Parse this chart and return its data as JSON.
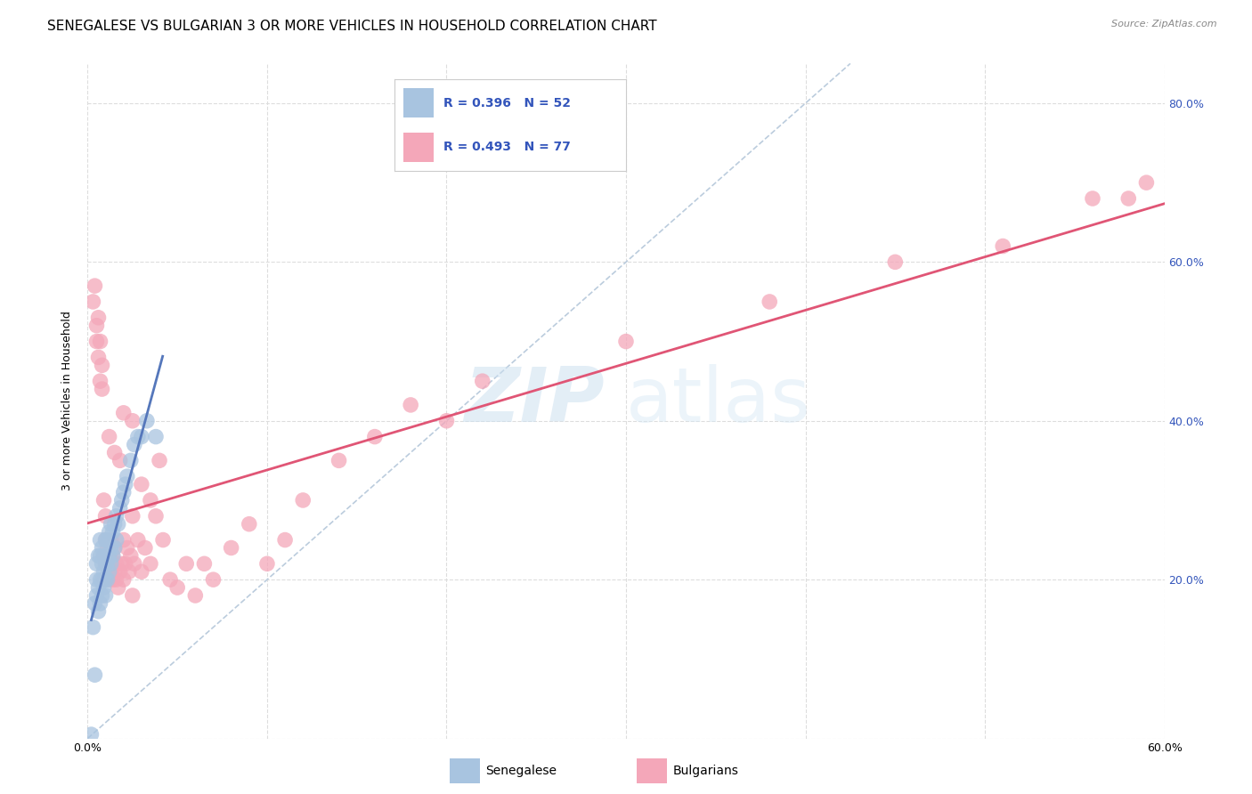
{
  "title": "SENEGALESE VS BULGARIAN 3 OR MORE VEHICLES IN HOUSEHOLD CORRELATION CHART",
  "source": "Source: ZipAtlas.com",
  "ylabel": "3 or more Vehicles in Household",
  "xlim": [
    0.0,
    0.6
  ],
  "ylim": [
    0.0,
    0.85
  ],
  "xticks": [
    0.0,
    0.1,
    0.2,
    0.3,
    0.4,
    0.5,
    0.6
  ],
  "xticklabels": [
    "0.0%",
    "",
    "",
    "",
    "",
    "",
    "60.0%"
  ],
  "yticks": [
    0.0,
    0.2,
    0.4,
    0.6,
    0.8
  ],
  "yticklabels": [
    "",
    "20.0%",
    "40.0%",
    "60.0%",
    "80.0%"
  ],
  "senegalese_color": "#a8c4e0",
  "bulgarian_color": "#f4a7b9",
  "senegalese_line_color": "#5577bb",
  "bulgarian_line_color": "#e05575",
  "diagonal_color": "#bbccdd",
  "background_color": "#ffffff",
  "grid_color": "#dddddd",
  "title_fontsize": 11,
  "axis_label_fontsize": 9,
  "tick_fontsize": 9,
  "watermark_zip": "ZIP",
  "watermark_atlas": "atlas",
  "senegalese_x": [
    0.002,
    0.003,
    0.004,
    0.004,
    0.005,
    0.005,
    0.005,
    0.006,
    0.006,
    0.006,
    0.007,
    0.007,
    0.007,
    0.007,
    0.008,
    0.008,
    0.008,
    0.008,
    0.009,
    0.009,
    0.009,
    0.01,
    0.01,
    0.01,
    0.01,
    0.011,
    0.011,
    0.011,
    0.012,
    0.012,
    0.012,
    0.013,
    0.013,
    0.013,
    0.014,
    0.014,
    0.015,
    0.015,
    0.016,
    0.016,
    0.017,
    0.018,
    0.019,
    0.02,
    0.021,
    0.022,
    0.024,
    0.026,
    0.028,
    0.03,
    0.033,
    0.038
  ],
  "senegalese_y": [
    0.005,
    0.14,
    0.08,
    0.17,
    0.18,
    0.2,
    0.22,
    0.16,
    0.19,
    0.23,
    0.17,
    0.2,
    0.23,
    0.25,
    0.18,
    0.2,
    0.22,
    0.24,
    0.19,
    0.21,
    0.23,
    0.18,
    0.2,
    0.22,
    0.25,
    0.2,
    0.22,
    0.25,
    0.21,
    0.23,
    0.26,
    0.22,
    0.24,
    0.27,
    0.23,
    0.26,
    0.24,
    0.27,
    0.25,
    0.28,
    0.27,
    0.29,
    0.3,
    0.31,
    0.32,
    0.33,
    0.35,
    0.37,
    0.38,
    0.38,
    0.4,
    0.38
  ],
  "bulgarian_x": [
    0.003,
    0.004,
    0.005,
    0.005,
    0.006,
    0.006,
    0.007,
    0.007,
    0.008,
    0.008,
    0.009,
    0.009,
    0.009,
    0.01,
    0.01,
    0.01,
    0.011,
    0.011,
    0.012,
    0.012,
    0.013,
    0.013,
    0.014,
    0.014,
    0.015,
    0.015,
    0.016,
    0.016,
    0.017,
    0.018,
    0.019,
    0.02,
    0.021,
    0.022,
    0.023,
    0.024,
    0.025,
    0.026,
    0.028,
    0.03,
    0.032,
    0.035,
    0.038,
    0.042,
    0.046,
    0.05,
    0.055,
    0.06,
    0.065,
    0.07,
    0.08,
    0.09,
    0.1,
    0.11,
    0.12,
    0.14,
    0.16,
    0.18,
    0.2,
    0.22,
    0.012,
    0.015,
    0.018,
    0.02,
    0.025,
    0.02,
    0.025,
    0.03,
    0.035,
    0.04,
    0.3,
    0.38,
    0.45,
    0.51,
    0.56,
    0.58,
    0.59
  ],
  "bulgarian_y": [
    0.55,
    0.57,
    0.52,
    0.5,
    0.48,
    0.53,
    0.45,
    0.5,
    0.44,
    0.47,
    0.2,
    0.23,
    0.3,
    0.22,
    0.25,
    0.28,
    0.22,
    0.24,
    0.2,
    0.23,
    0.21,
    0.25,
    0.2,
    0.23,
    0.21,
    0.24,
    0.22,
    0.2,
    0.19,
    0.21,
    0.22,
    0.2,
    0.22,
    0.24,
    0.21,
    0.23,
    0.18,
    0.22,
    0.25,
    0.21,
    0.24,
    0.22,
    0.28,
    0.25,
    0.2,
    0.19,
    0.22,
    0.18,
    0.22,
    0.2,
    0.24,
    0.27,
    0.22,
    0.25,
    0.3,
    0.35,
    0.38,
    0.42,
    0.4,
    0.45,
    0.38,
    0.36,
    0.35,
    0.41,
    0.4,
    0.25,
    0.28,
    0.32,
    0.3,
    0.35,
    0.5,
    0.55,
    0.6,
    0.62,
    0.68,
    0.68,
    0.7
  ]
}
